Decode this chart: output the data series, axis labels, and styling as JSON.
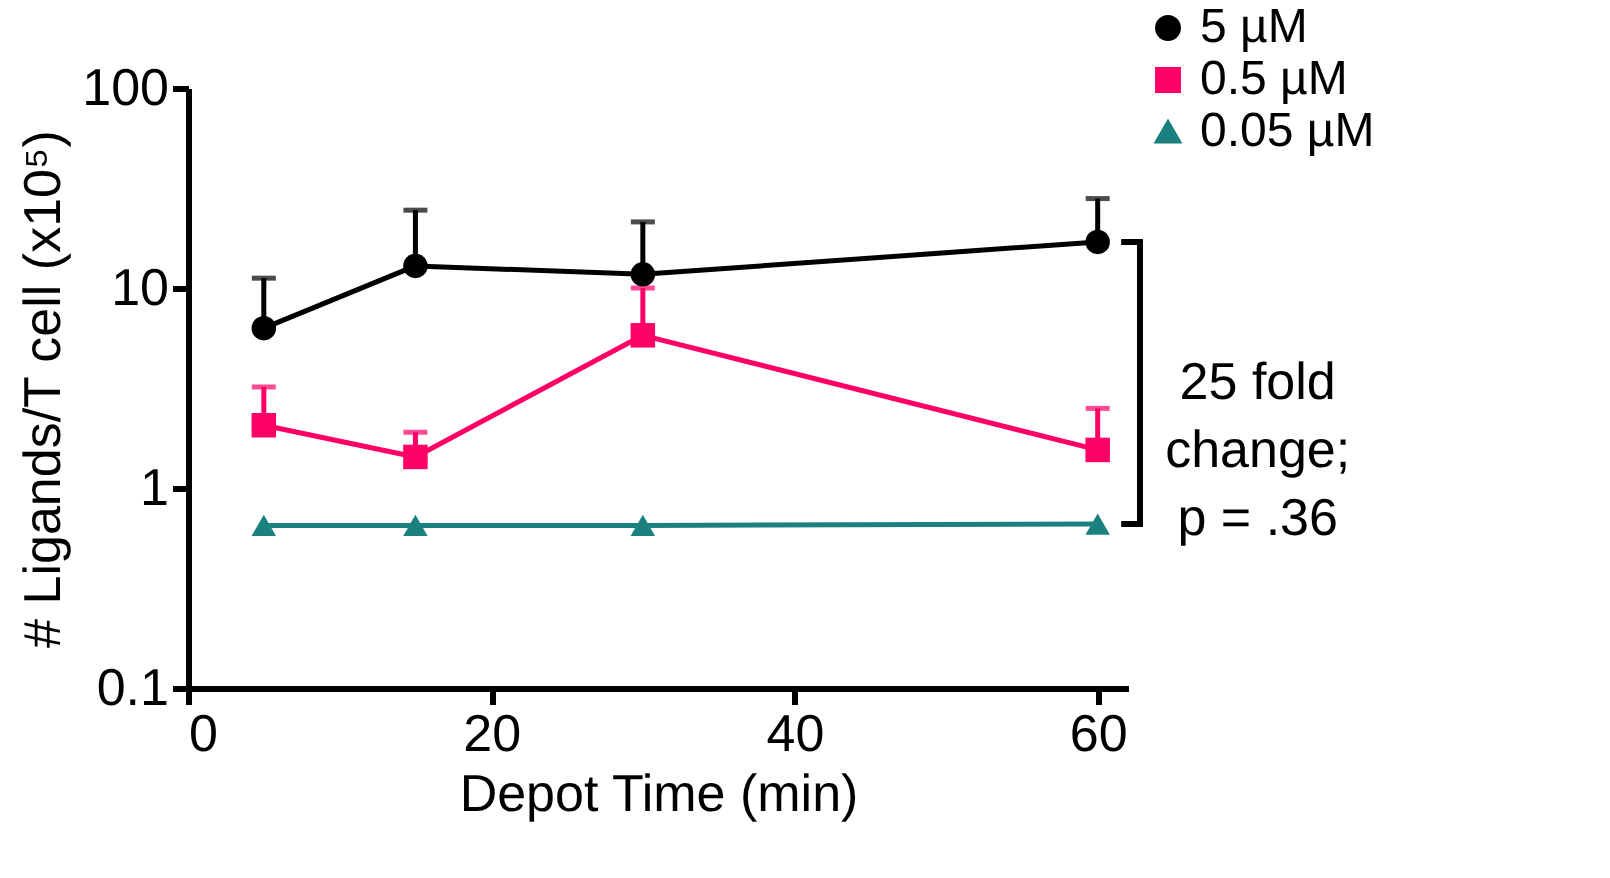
{
  "chart_data": {
    "type": "line",
    "xlabel": "Depot Time (min)",
    "ylabel": "# Ligands/T cell (x10⁵)",
    "x": [
      5,
      15,
      30,
      60
    ],
    "series": [
      {
        "name": "5 µM",
        "color": "#000000",
        "marker": "circle",
        "values": [
          6.3,
          12.9,
          11.7,
          17
        ],
        "errors": [
          [
            6.3,
            11.2
          ],
          [
            12.9,
            24.5
          ],
          [
            11.7,
            21.4
          ],
          [
            17,
            28
          ]
        ]
      },
      {
        "name": "0.5 µM",
        "color": "#ff0066",
        "marker": "square",
        "values": [
          2.06,
          1.43,
          5.8,
          1.55
        ],
        "errors": [
          [
            2.06,
            3.2
          ],
          [
            1.43,
            1.9
          ],
          [
            5.8,
            10
          ],
          [
            1.55,
            2.5
          ]
        ]
      },
      {
        "name": "0.05 µM",
        "color": "#1a8080",
        "marker": "triangle",
        "values": [
          0.65,
          0.65,
          0.65,
          0.66
        ]
      }
    ],
    "log": true,
    "xlim": [
      0,
      62
    ],
    "xticks": [
      0,
      20,
      40,
      60
    ],
    "ylim": [
      0.1,
      100
    ],
    "yticks": [
      0.1,
      1,
      10,
      100
    ],
    "grid": false,
    "legend": "top right",
    "line_style": "solid",
    "annotations": [
      "25 fold\nchange;\np = .36"
    ]
  }
}
